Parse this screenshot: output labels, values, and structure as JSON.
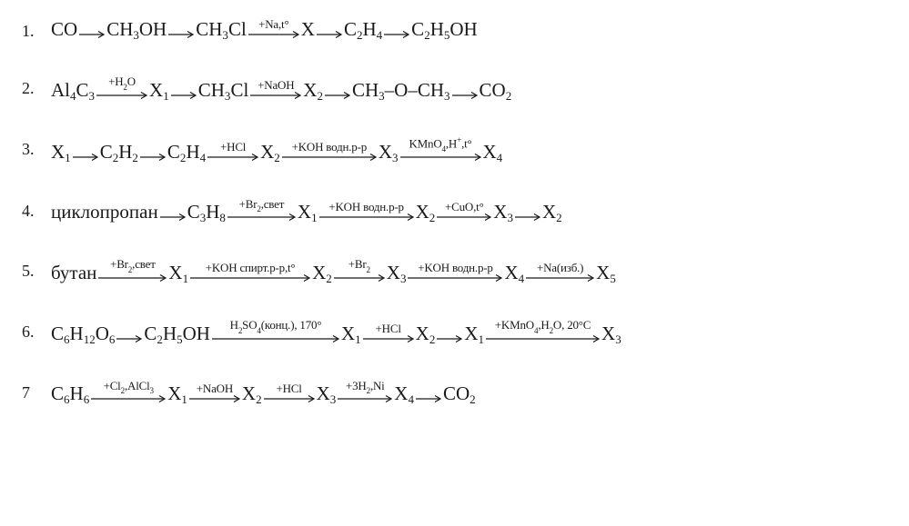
{
  "page": {
    "background_color": "#ffffff",
    "text_color": "#1a1a1a",
    "font_family": "Times New Roman",
    "base_fontsize": 21,
    "number_fontsize": 18,
    "label_fontsize": 13
  },
  "arrow": {
    "short_width": 28,
    "long_width_base": 56,
    "stroke": "#1a1a1a",
    "stroke_width": 1.2
  },
  "problems": [
    {
      "number": "1.",
      "chain": [
        {
          "type": "species",
          "formula": "CO"
        },
        {
          "type": "arrow",
          "label": ""
        },
        {
          "type": "species",
          "formula": "CH_3OH"
        },
        {
          "type": "arrow",
          "label": ""
        },
        {
          "type": "species",
          "formula": "CH_3Cl"
        },
        {
          "type": "arrow",
          "label": "+Na,t°"
        },
        {
          "type": "species",
          "formula": "X"
        },
        {
          "type": "arrow",
          "label": ""
        },
        {
          "type": "species",
          "formula": "C_2H_4"
        },
        {
          "type": "arrow",
          "label": ""
        },
        {
          "type": "species",
          "formula": "C_2H_5OH"
        }
      ]
    },
    {
      "number": "2.",
      "chain": [
        {
          "type": "species",
          "formula": "Al_4C_3"
        },
        {
          "type": "arrow",
          "label": "+H_2O"
        },
        {
          "type": "species",
          "formula": "X_1"
        },
        {
          "type": "arrow",
          "label": ""
        },
        {
          "type": "species",
          "formula": "CH_3Cl"
        },
        {
          "type": "arrow",
          "label": "+NaOH"
        },
        {
          "type": "species",
          "formula": "X_2"
        },
        {
          "type": "arrow",
          "label": ""
        },
        {
          "type": "species",
          "formula": "CH_3–O–CH_3"
        },
        {
          "type": "arrow",
          "label": ""
        },
        {
          "type": "species",
          "formula": "CO_2"
        }
      ]
    },
    {
      "number": "3.",
      "chain": [
        {
          "type": "species",
          "formula": "X_1"
        },
        {
          "type": "arrow",
          "label": ""
        },
        {
          "type": "species",
          "formula": "C_2H_2"
        },
        {
          "type": "arrow",
          "label": ""
        },
        {
          "type": "species",
          "formula": "C_2H_4"
        },
        {
          "type": "arrow",
          "label": "+HCl"
        },
        {
          "type": "species",
          "formula": "X_2"
        },
        {
          "type": "arrow",
          "label": "+KOH водн.р-р"
        },
        {
          "type": "species",
          "formula": "X_3"
        },
        {
          "type": "arrow",
          "label": "KMnO_4,H^+,t°"
        },
        {
          "type": "species",
          "formula": "X_4"
        }
      ]
    },
    {
      "number": "4.",
      "chain": [
        {
          "type": "species",
          "formula": "циклопропан"
        },
        {
          "type": "arrow",
          "label": ""
        },
        {
          "type": "species",
          "formula": "C_3H_8"
        },
        {
          "type": "arrow",
          "label": "+Br_2,свет"
        },
        {
          "type": "species",
          "formula": "X_1"
        },
        {
          "type": "arrow",
          "label": "+KOH водн.р-р"
        },
        {
          "type": "species",
          "formula": "X_2"
        },
        {
          "type": "arrow",
          "label": "+CuO,t°"
        },
        {
          "type": "species",
          "formula": "X_3"
        },
        {
          "type": "arrow",
          "label": ""
        },
        {
          "type": "species",
          "formula": "X_2"
        }
      ]
    },
    {
      "number": "5.",
      "chain": [
        {
          "type": "species",
          "formula": "бутан"
        },
        {
          "type": "arrow",
          "label": "+Br_2,свет"
        },
        {
          "type": "species",
          "formula": "X_1"
        },
        {
          "type": "arrow",
          "label": "+KOH спирт.р-р,t°"
        },
        {
          "type": "species",
          "formula": "X_2"
        },
        {
          "type": "arrow",
          "label": "+Br_2"
        },
        {
          "type": "species",
          "formula": "X_3"
        },
        {
          "type": "arrow",
          "label": "+KOH водн.р-р"
        },
        {
          "type": "species",
          "formula": "X_4"
        },
        {
          "type": "arrow",
          "label": "+Na(изб.)"
        },
        {
          "type": "species",
          "formula": "X_5"
        }
      ]
    },
    {
      "number": "6.",
      "chain": [
        {
          "type": "species",
          "formula": "C_6H_1_2O_6"
        },
        {
          "type": "arrow",
          "label": ""
        },
        {
          "type": "species",
          "formula": "C_2H_5OH"
        },
        {
          "type": "arrow",
          "label": "H_2SO_4(конц.), 170°"
        },
        {
          "type": "species",
          "formula": "X_1"
        },
        {
          "type": "arrow",
          "label": "+HCl"
        },
        {
          "type": "species",
          "formula": "X_2"
        },
        {
          "type": "arrow",
          "label": ""
        },
        {
          "type": "species",
          "formula": "X_1"
        },
        {
          "type": "arrow",
          "label": "+KMnO_4,H_2O, 20°C"
        },
        {
          "type": "species",
          "formula": "X_3"
        }
      ]
    },
    {
      "number": "7",
      "chain": [
        {
          "type": "species",
          "formula": "C_6H_6"
        },
        {
          "type": "arrow",
          "label": "+Cl_2,AlCl_3"
        },
        {
          "type": "species",
          "formula": "X_1"
        },
        {
          "type": "arrow",
          "label": "+NaOH"
        },
        {
          "type": "species",
          "formula": "X_2"
        },
        {
          "type": "arrow",
          "label": "+HCl"
        },
        {
          "type": "species",
          "formula": "X_3"
        },
        {
          "type": "arrow",
          "label": "+3H_2,Ni"
        },
        {
          "type": "species",
          "formula": "X_4"
        },
        {
          "type": "arrow",
          "label": ""
        },
        {
          "type": "species",
          "formula": "CO_2"
        }
      ]
    }
  ]
}
